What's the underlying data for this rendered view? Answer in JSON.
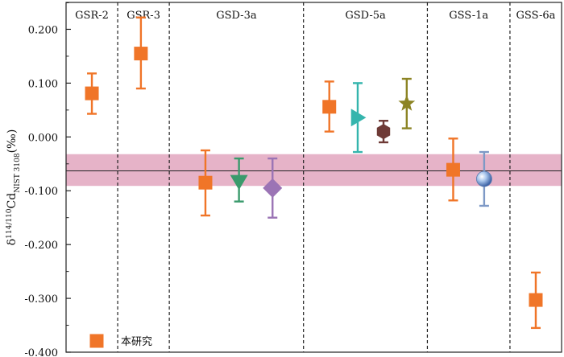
{
  "chart_data": {
    "type": "scatter",
    "ylabel": {
      "prefix": "δ",
      "sup": "114/110",
      "main": "Cd",
      "sub": "NIST 3108",
      "suffix": "(‰)"
    },
    "ylim": [
      -0.4,
      0.25
    ],
    "yticks": [
      0.2,
      0.1,
      0.0,
      -0.1,
      -0.2,
      -0.3,
      -0.4
    ],
    "ytick_labels": [
      "0.200",
      "0.100",
      "0.000",
      "-0.100",
      "-0.200",
      "-0.300",
      "-0.400"
    ],
    "reference_line": -0.063,
    "reference_band": [
      -0.091,
      -0.032
    ],
    "band_color": "#e6b3c8",
    "groups": [
      {
        "label": "GSR-2",
        "x_start": 0.0,
        "x_end": 1.0
      },
      {
        "label": "GSR-3",
        "x_start": 1.0,
        "x_end": 2.0
      },
      {
        "label": "GSD-3a",
        "x_start": 2.0,
        "x_end": 4.6
      },
      {
        "label": "GSD-5a",
        "x_start": 4.6,
        "x_end": 7.0
      },
      {
        "label": "GSS-1a",
        "x_start": 7.0,
        "x_end": 8.6
      },
      {
        "label": "GSS-6a",
        "x_start": 8.6,
        "x_end": 9.6
      }
    ],
    "series": [
      {
        "group": "GSR-2",
        "x": 0.5,
        "y": 0.081,
        "err_low": 0.043,
        "err_high": 0.118,
        "marker": "square",
        "color": "#f07528",
        "err_color": "#f07528"
      },
      {
        "group": "GSR-3",
        "x": 1.45,
        "y": 0.155,
        "err_low": 0.09,
        "err_high": 0.222,
        "marker": "square",
        "color": "#f07528",
        "err_color": "#f07528"
      },
      {
        "group": "GSD-3a",
        "x": 2.7,
        "y": -0.085,
        "err_low": -0.146,
        "err_high": -0.025,
        "marker": "square",
        "color": "#f07528",
        "err_color": "#f07528"
      },
      {
        "group": "GSD-3a",
        "x": 3.35,
        "y": -0.083,
        "err_low": -0.12,
        "err_high": -0.04,
        "marker": "triangle-down",
        "color": "#3a9a6c",
        "err_color": "#3a9a6c"
      },
      {
        "group": "GSD-3a",
        "x": 4.0,
        "y": -0.095,
        "err_low": -0.15,
        "err_high": -0.04,
        "marker": "diamond",
        "color": "#9b74b5",
        "err_color": "#9b74b5"
      },
      {
        "group": "GSD-5a",
        "x": 5.1,
        "y": 0.056,
        "err_low": 0.01,
        "err_high": 0.103,
        "marker": "square",
        "color": "#f07528",
        "err_color": "#f07528"
      },
      {
        "group": "GSD-5a",
        "x": 5.65,
        "y": 0.036,
        "err_low": -0.028,
        "err_high": 0.1,
        "marker": "triangle-right",
        "color": "#35b5ad",
        "err_color": "#35b5ad"
      },
      {
        "group": "GSD-5a",
        "x": 6.15,
        "y": 0.01,
        "err_low": -0.01,
        "err_high": 0.03,
        "marker": "hexagon",
        "color": "#6e3a36",
        "err_color": "#6e3a36"
      },
      {
        "group": "GSD-5a",
        "x": 6.6,
        "y": 0.062,
        "err_low": 0.016,
        "err_high": 0.108,
        "marker": "star",
        "color": "#8c8424",
        "err_color": "#8c8424"
      },
      {
        "group": "GSS-1a",
        "x": 7.5,
        "y": -0.061,
        "err_low": -0.118,
        "err_high": -0.003,
        "marker": "square",
        "color": "#f07528",
        "err_color": "#f07528"
      },
      {
        "group": "GSS-1a",
        "x": 8.1,
        "y": -0.078,
        "err_low": -0.128,
        "err_high": -0.028,
        "marker": "sphere",
        "color": "#8ab0e0",
        "err_color": "#7e99c6"
      },
      {
        "group": "GSS-6a",
        "x": 9.1,
        "y": -0.303,
        "err_low": -0.355,
        "err_high": -0.252,
        "marker": "square",
        "color": "#f07528",
        "err_color": "#f07528"
      }
    ],
    "legend": {
      "placement": "bottom-left",
      "entries": [
        {
          "label": "本研究",
          "marker": "square",
          "color": "#f07528"
        }
      ]
    }
  }
}
